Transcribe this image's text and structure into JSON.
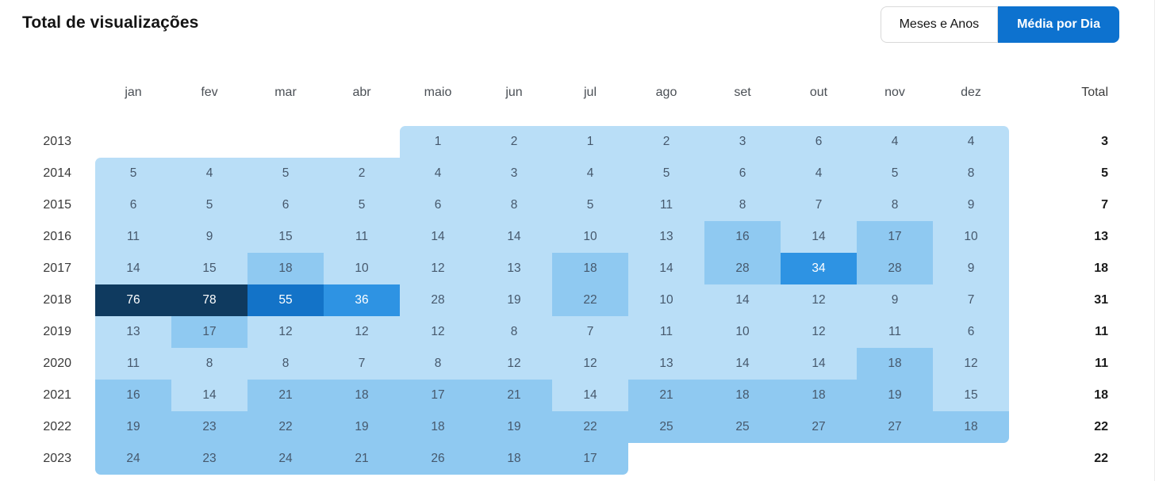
{
  "page": {
    "title": "Total de visualizações"
  },
  "toolbar": {
    "accent": "#0d72cf",
    "buttons": [
      {
        "label": "Meses e Anos",
        "active": false
      },
      {
        "label": "Média por Dia",
        "active": true
      }
    ]
  },
  "chart_data": {
    "type": "heatmap",
    "title": "Total de visualizações",
    "columns": [
      "jan",
      "fev",
      "mar",
      "abr",
      "maio",
      "jun",
      "jul",
      "ago",
      "set",
      "out",
      "nov",
      "dez"
    ],
    "total_label": "Total",
    "palette": {
      "0": "transparent",
      "1": "#b9def7",
      "2": "#8fc9f1",
      "3": "#2e93e3",
      "4": "#1373c8",
      "5": "#0f3a5f"
    },
    "text_on_light": "#46586c",
    "text_on_dark": "#ffffff",
    "rows": [
      {
        "year": "2013",
        "values": [
          null,
          null,
          null,
          null,
          1,
          2,
          1,
          2,
          3,
          6,
          4,
          4
        ],
        "levels": [
          0,
          0,
          0,
          0,
          1,
          1,
          1,
          1,
          1,
          1,
          1,
          1
        ],
        "total": 3
      },
      {
        "year": "2014",
        "values": [
          5,
          4,
          5,
          2,
          4,
          3,
          4,
          5,
          6,
          4,
          5,
          8
        ],
        "levels": [
          1,
          1,
          1,
          1,
          1,
          1,
          1,
          1,
          1,
          1,
          1,
          1
        ],
        "total": 5
      },
      {
        "year": "2015",
        "values": [
          6,
          5,
          6,
          5,
          6,
          8,
          5,
          11,
          8,
          7,
          8,
          9
        ],
        "levels": [
          1,
          1,
          1,
          1,
          1,
          1,
          1,
          1,
          1,
          1,
          1,
          1
        ],
        "total": 7
      },
      {
        "year": "2016",
        "values": [
          11,
          9,
          15,
          11,
          14,
          14,
          10,
          13,
          16,
          14,
          17,
          10
        ],
        "levels": [
          1,
          1,
          1,
          1,
          1,
          1,
          1,
          1,
          2,
          1,
          2,
          1
        ],
        "total": 13
      },
      {
        "year": "2017",
        "values": [
          14,
          15,
          18,
          10,
          12,
          13,
          18,
          14,
          28,
          34,
          28,
          9
        ],
        "levels": [
          1,
          1,
          2,
          1,
          1,
          1,
          2,
          1,
          2,
          3,
          2,
          1
        ],
        "total": 18
      },
      {
        "year": "2018",
        "values": [
          76,
          78,
          55,
          36,
          28,
          19,
          22,
          10,
          14,
          12,
          9,
          7
        ],
        "levels": [
          5,
          5,
          4,
          3,
          1,
          1,
          2,
          1,
          1,
          1,
          1,
          1
        ],
        "total": 31
      },
      {
        "year": "2019",
        "values": [
          13,
          17,
          12,
          12,
          12,
          8,
          7,
          11,
          10,
          12,
          11,
          6
        ],
        "levels": [
          1,
          2,
          1,
          1,
          1,
          1,
          1,
          1,
          1,
          1,
          1,
          1
        ],
        "total": 11
      },
      {
        "year": "2020",
        "values": [
          11,
          8,
          8,
          7,
          8,
          12,
          12,
          13,
          14,
          14,
          18,
          12
        ],
        "levels": [
          1,
          1,
          1,
          1,
          1,
          1,
          1,
          1,
          1,
          1,
          2,
          1
        ],
        "total": 11
      },
      {
        "year": "2021",
        "values": [
          16,
          14,
          21,
          18,
          17,
          21,
          14,
          21,
          18,
          18,
          19,
          15
        ],
        "levels": [
          2,
          1,
          2,
          2,
          2,
          2,
          1,
          2,
          2,
          2,
          2,
          1
        ],
        "total": 18
      },
      {
        "year": "2022",
        "values": [
          19,
          23,
          22,
          19,
          18,
          19,
          22,
          25,
          25,
          27,
          27,
          18
        ],
        "levels": [
          2,
          2,
          2,
          2,
          2,
          2,
          2,
          2,
          2,
          2,
          2,
          2
        ],
        "total": 22
      },
      {
        "year": "2023",
        "values": [
          24,
          23,
          24,
          21,
          26,
          18,
          17,
          null,
          null,
          null,
          null,
          null
        ],
        "levels": [
          2,
          2,
          2,
          2,
          2,
          2,
          2,
          0,
          0,
          0,
          0,
          0
        ],
        "total": 22
      }
    ]
  }
}
